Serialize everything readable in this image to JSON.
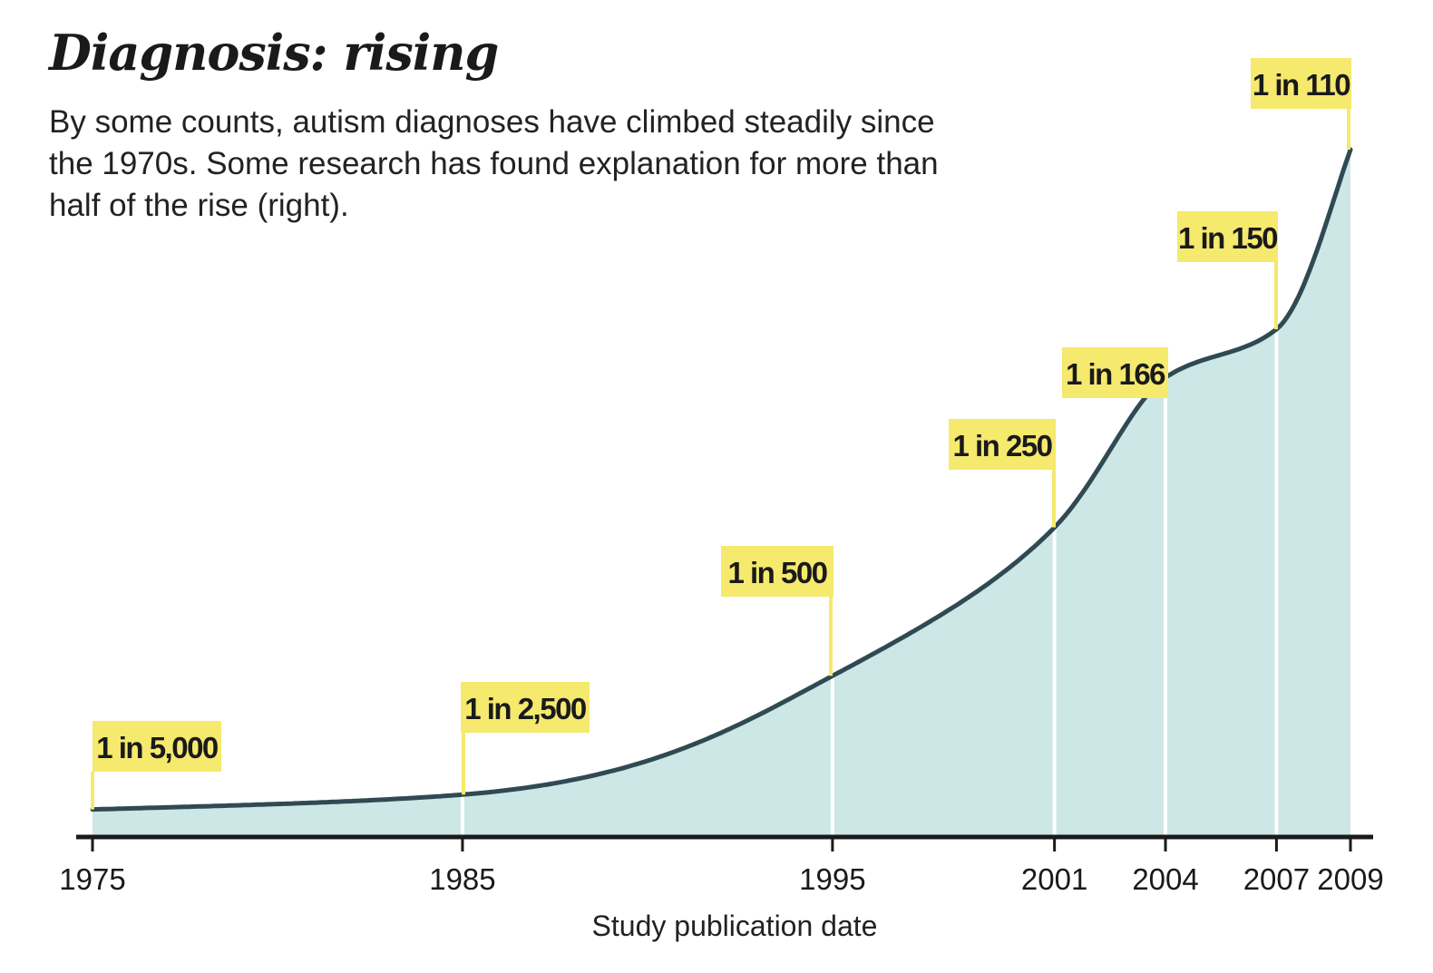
{
  "chart_data": {
    "type": "area",
    "title": "Diagnosis: rising",
    "subtitle": "By some counts, autism diagnoses have climbed steadily since the 1970s. Some research has found explanation for more than half of the rise (right).",
    "xlabel": "Study publication date",
    "ylabel": "",
    "x": [
      1975,
      1985,
      1995,
      2001,
      2004,
      2007,
      2009
    ],
    "series": [
      {
        "values": [
          0.0002,
          0.0004,
          0.002,
          0.004,
          0.00602,
          0.00667,
          0.00909
        ],
        "labels": [
          "1 in 5,000",
          "1 in 2,500",
          "1 in 500",
          "1 in 250",
          "1 in 166",
          "1 in 150",
          "1 in 110"
        ]
      }
    ],
    "x_tick_labels": [
      "1975",
      "1985",
      "1995",
      "2001",
      "2004",
      "2007",
      "2009"
    ],
    "grid": false,
    "legend": "none",
    "colors": {
      "fill": "#cde6e6",
      "line": "#2f4a52",
      "label_bg": "#f5e96e",
      "marker_line_lit": "#f5e96e",
      "marker_line_plain": "#ffffff",
      "axis": "#1a1a1a"
    }
  }
}
